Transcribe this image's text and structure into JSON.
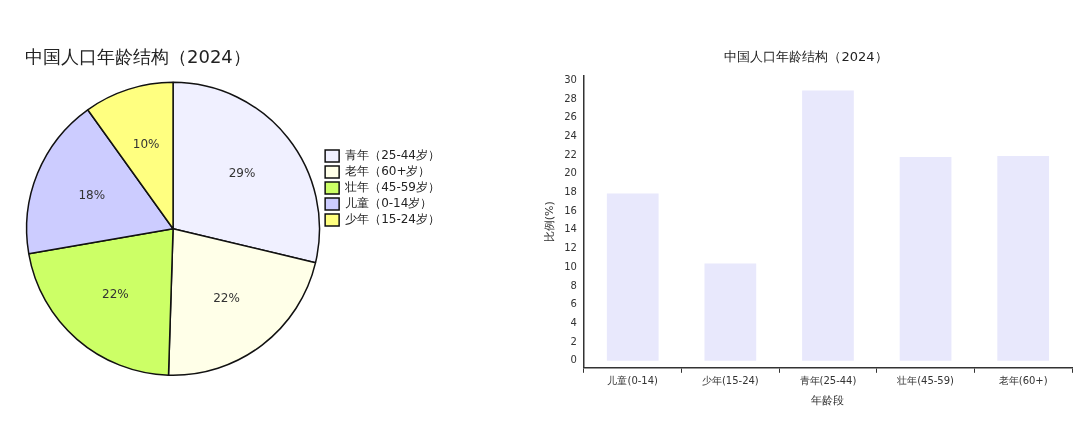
{
  "chart_data": [
    {
      "type": "pie",
      "title": "中国人口年龄结构（2024）",
      "categories": [
        "青年（25-44岁）",
        "老年（60+岁）",
        "壮年（45-59岁）",
        "儿童（0-14岁）",
        "少年（15-24岁）"
      ],
      "values": [
        29,
        22,
        22,
        18,
        10
      ],
      "colors": [
        "#f0f0ff",
        "#ffffe8",
        "#ccff66",
        "#ccccff",
        "#ffff80"
      ],
      "value_labels": [
        "29%",
        "22%",
        "22%",
        "18%",
        "10%"
      ],
      "legend": "right"
    },
    {
      "type": "bar",
      "title": "中国人口年龄结构（2024）",
      "xlabel": "年龄段",
      "ylabel": "比例(%)",
      "categories": [
        "儿童(0-14)",
        "少年(15-24)",
        "青年(25-44)",
        "壮年(45-59)",
        "老年(60+)"
      ],
      "values": [
        17.9,
        10.4,
        28.9,
        21.8,
        21.9
      ],
      "color": "#e8e8fc",
      "ylim": [
        -0.75,
        30.5
      ],
      "yticks": [
        0,
        2,
        4,
        6,
        8,
        10,
        12,
        14,
        16,
        18,
        20,
        22,
        24,
        26,
        28,
        30
      ],
      "grid": false,
      "legend": false
    }
  ]
}
